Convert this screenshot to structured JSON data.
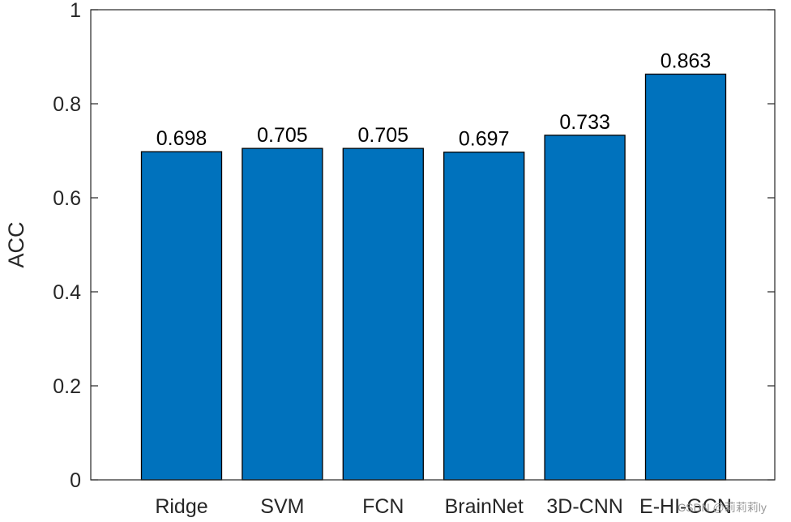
{
  "chart_data": {
    "type": "bar",
    "title": "",
    "xlabel": "",
    "ylabel": "ACC",
    "categories": [
      "Ridge",
      "SVM",
      "FCN",
      "BrainNet",
      "3D-CNN",
      "E-HI-GCN"
    ],
    "values": [
      0.698,
      0.705,
      0.705,
      0.697,
      0.733,
      0.863
    ],
    "value_labels": [
      "0.698",
      "0.705",
      "0.705",
      "0.697",
      "0.733",
      "0.863"
    ],
    "ylim": [
      0,
      1
    ],
    "yticks": [
      0,
      0.2,
      0.4,
      0.6,
      0.8,
      1
    ],
    "ytick_labels": [
      "0",
      "0.2",
      "0.4",
      "0.6",
      "0.8",
      "1"
    ],
    "grid": false,
    "bar_color": "#0072BD",
    "bar_edge_color": "#000000"
  },
  "watermark": "CSDN @莉莉莉ly"
}
